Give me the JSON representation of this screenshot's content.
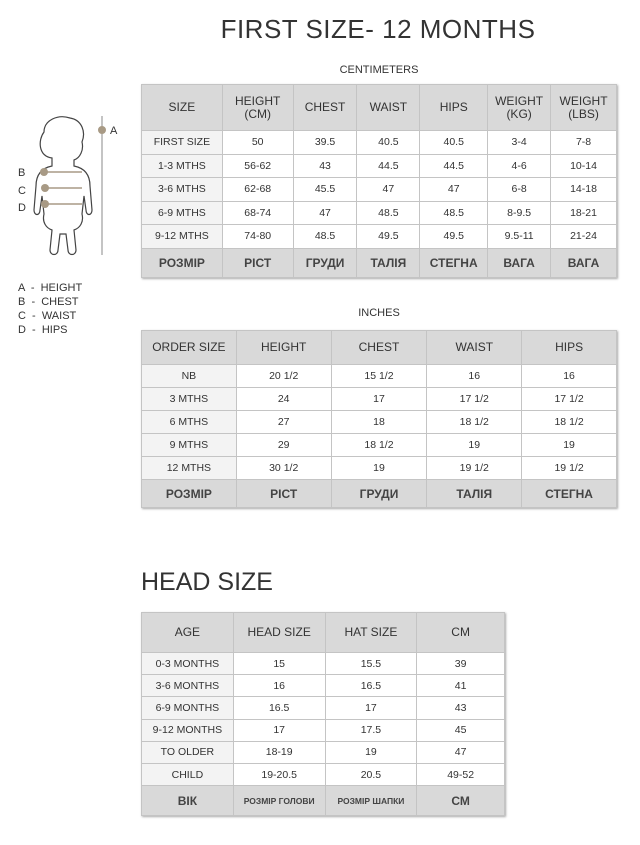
{
  "title": "FIRST SIZE- 12 MONTHS",
  "cm_table": {
    "caption": "CENTIMETERS",
    "headers": [
      "SIZE",
      "HEIGHT (CM)",
      "CHEST",
      "WAIST",
      "HIPS",
      "WEIGHT (KG)",
      "WEIGHT (LBS)"
    ],
    "rows": [
      [
        "FIRST SIZE",
        "50",
        "39.5",
        "40.5",
        "40.5",
        "3-4",
        "7-8"
      ],
      [
        "1-3 MTHS",
        "56-62",
        "43",
        "44.5",
        "44.5",
        "4-6",
        "10-14"
      ],
      [
        "3-6 MTHS",
        "62-68",
        "45.5",
        "47",
        "47",
        "6-8",
        "14-18"
      ],
      [
        "6-9 MTHS",
        "68-74",
        "47",
        "48.5",
        "48.5",
        "8-9.5",
        "18-21"
      ],
      [
        "9-12 MTHS",
        "74-80",
        "48.5",
        "49.5",
        "49.5",
        "9.5-11",
        "21-24"
      ]
    ],
    "footer": [
      "РОЗМІР",
      "РІСТ",
      "ГРУДИ",
      "ТАЛІЯ",
      "СТЕГНА",
      "ВАГА",
      "ВАГА"
    ]
  },
  "in_table": {
    "caption": "INCHES",
    "headers": [
      "ORDER SIZE",
      "HEIGHT",
      "CHEST",
      "WAIST",
      "HIPS"
    ],
    "rows": [
      [
        "NB",
        "20 1/2",
        "15 1/2",
        "16",
        "16"
      ],
      [
        "3 MTHS",
        "24",
        "17",
        "17 1/2",
        "17 1/2"
      ],
      [
        "6 MTHS",
        "27",
        "18",
        "18 1/2",
        "18 1/2"
      ],
      [
        "9 MTHS",
        "29",
        "18 1/2",
        "19",
        "19"
      ],
      [
        "12 MTHS",
        "30 1/2",
        "19",
        "19 1/2",
        "19 1/2"
      ]
    ],
    "footer": [
      "РОЗМІР",
      "РІСТ",
      "ГРУДИ",
      "ТАЛІЯ",
      "СТЕГНА"
    ]
  },
  "head_title": "HEAD SIZE",
  "head_table": {
    "headers": [
      "AGE",
      "HEAD SIZE",
      "HAT SIZE",
      "CM"
    ],
    "rows": [
      [
        "0-3 MONTHS",
        "15",
        "15.5",
        "39"
      ],
      [
        "3-6 MONTHS",
        "16",
        "16.5",
        "41"
      ],
      [
        "6-9 MONTHS",
        "16.5",
        "17",
        "43"
      ],
      [
        "9-12 MONTHS",
        "17",
        "17.5",
        "45"
      ],
      [
        "TO OLDER",
        "18-19",
        "19",
        "47"
      ],
      [
        "CHILD",
        "19-20.5",
        "20.5",
        "49-52"
      ]
    ],
    "footer": [
      "ВІК",
      "РОЗМІР ГОЛОВИ",
      "РОЗМІР ШАПКИ",
      "СМ"
    ]
  },
  "figure": {
    "labels": [
      "A",
      "B",
      "C",
      "D"
    ],
    "marker_color": "#a89a85"
  },
  "legend": [
    "A  -  HEIGHT",
    "B  -  CHEST",
    "C  -  WAIST",
    "D  -  HIPS"
  ]
}
